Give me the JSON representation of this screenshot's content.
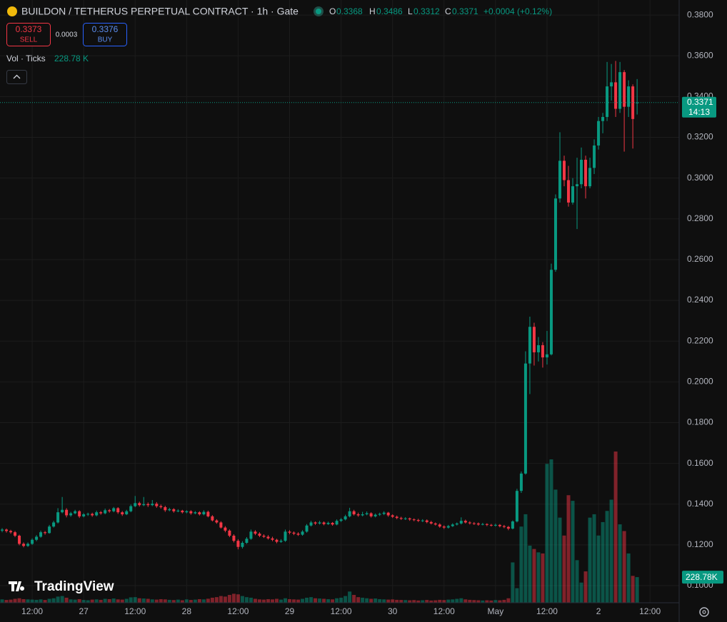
{
  "chart_data": {
    "type": "candlestick",
    "title": "BUILDON / TETHERUS PERPETUAL CONTRACT · 1h · Gate",
    "legend": {
      "o": "O",
      "open": 0.3368,
      "h": "H",
      "high": 0.3486,
      "l": "L",
      "low": 0.3312,
      "c": "C",
      "close": 0.3371,
      "change": "+0.0004 (+0.12%)"
    },
    "sell": {
      "price": 0.3373,
      "label": "SELL"
    },
    "spread": 0.0003,
    "buy": {
      "price": 0.3376,
      "label": "BUY"
    },
    "volume_legend": {
      "label": "Vol · Ticks",
      "value": "228.78 K"
    },
    "volume_tag": "228.78K",
    "last_price": 0.3371,
    "countdown": "14:13",
    "brand": "TradingView",
    "up_color": "#089981",
    "down_color": "#f23645",
    "grid": true,
    "ylim": [
      0.0916,
      0.3874
    ],
    "yticks": [
      {
        "value": 0.1,
        "label": "0.1000"
      },
      {
        "value": 0.12,
        "label": "0.1200"
      },
      {
        "value": 0.14,
        "label": "0.1400"
      },
      {
        "value": 0.16,
        "label": "0.1600"
      },
      {
        "value": 0.18,
        "label": "0.1800"
      },
      {
        "value": 0.2,
        "label": "0.2000"
      },
      {
        "value": 0.22,
        "label": "0.2200"
      },
      {
        "value": 0.24,
        "label": "0.2400"
      },
      {
        "value": 0.26,
        "label": "0.2600"
      },
      {
        "value": 0.28,
        "label": "0.2800"
      },
      {
        "value": 0.3,
        "label": "0.3000"
      },
      {
        "value": 0.32,
        "label": "0.3200"
      },
      {
        "value": 0.34,
        "label": "0.3400"
      },
      {
        "value": 0.36,
        "label": "0.3600"
      },
      {
        "value": 0.38,
        "label": "0.3800"
      }
    ],
    "xlim": [
      -0.5,
      157.8
    ],
    "xticks": [
      {
        "value": 7,
        "label": "12:00"
      },
      {
        "value": 19,
        "label": "27"
      },
      {
        "value": 31,
        "label": "12:00"
      },
      {
        "value": 43,
        "label": "28"
      },
      {
        "value": 55,
        "label": "12:00"
      },
      {
        "value": 67,
        "label": "29"
      },
      {
        "value": 79,
        "label": "12:00"
      },
      {
        "value": 91,
        "label": "30"
      },
      {
        "value": 103,
        "label": "12:00"
      },
      {
        "value": 115,
        "label": "May"
      },
      {
        "value": 127,
        "label": "12:00"
      },
      {
        "value": 139,
        "label": "2"
      },
      {
        "value": 151,
        "label": "12:00"
      }
    ],
    "ohlc": [
      [
        0.127,
        0.1282,
        0.1262,
        0.1275
      ],
      [
        0.1275,
        0.128,
        0.126,
        0.1268
      ],
      [
        0.1268,
        0.1274,
        0.1255,
        0.1262
      ],
      [
        0.1262,
        0.1268,
        0.1238,
        0.1245
      ],
      [
        0.1245,
        0.125,
        0.1198,
        0.1205
      ],
      [
        0.1205,
        0.1212,
        0.1188,
        0.1195
      ],
      [
        0.1195,
        0.1212,
        0.119,
        0.1205
      ],
      [
        0.1205,
        0.1232,
        0.12,
        0.1225
      ],
      [
        0.1225,
        0.1248,
        0.1218,
        0.124
      ],
      [
        0.124,
        0.127,
        0.1235,
        0.1262
      ],
      [
        0.1262,
        0.1268,
        0.125,
        0.1258
      ],
      [
        0.1258,
        0.1298,
        0.1255,
        0.129
      ],
      [
        0.129,
        0.1318,
        0.1285,
        0.131
      ],
      [
        0.131,
        0.138,
        0.1305,
        0.136
      ],
      [
        0.136,
        0.1435,
        0.1355,
        0.1372
      ],
      [
        0.1372,
        0.138,
        0.1335,
        0.1345
      ],
      [
        0.1345,
        0.1362,
        0.1338,
        0.1355
      ],
      [
        0.1355,
        0.1372,
        0.135,
        0.1365
      ],
      [
        0.1365,
        0.137,
        0.1332,
        0.134
      ],
      [
        0.134,
        0.1356,
        0.1335,
        0.135
      ],
      [
        0.135,
        0.1358,
        0.1342,
        0.1352
      ],
      [
        0.1352,
        0.1358,
        0.1338,
        0.1345
      ],
      [
        0.1345,
        0.1368,
        0.134,
        0.136
      ],
      [
        0.136,
        0.1366,
        0.1348,
        0.1355
      ],
      [
        0.1355,
        0.1378,
        0.135,
        0.137
      ],
      [
        0.137,
        0.1376,
        0.1358,
        0.1365
      ],
      [
        0.1365,
        0.1386,
        0.136,
        0.138
      ],
      [
        0.138,
        0.1385,
        0.1352,
        0.136
      ],
      [
        0.136,
        0.1366,
        0.1342,
        0.135
      ],
      [
        0.135,
        0.1372,
        0.1346,
        0.1365
      ],
      [
        0.1365,
        0.1398,
        0.136,
        0.139
      ],
      [
        0.139,
        0.144,
        0.1385,
        0.1405
      ],
      [
        0.1405,
        0.1412,
        0.1388,
        0.1395
      ],
      [
        0.1395,
        0.1435,
        0.139,
        0.14
      ],
      [
        0.14,
        0.1408,
        0.1386,
        0.1395
      ],
      [
        0.1395,
        0.142,
        0.139,
        0.1402
      ],
      [
        0.1402,
        0.141,
        0.1382,
        0.139
      ],
      [
        0.139,
        0.1398,
        0.1378,
        0.1385
      ],
      [
        0.1385,
        0.1392,
        0.1362,
        0.137
      ],
      [
        0.137,
        0.1382,
        0.1365,
        0.1375
      ],
      [
        0.1375,
        0.138,
        0.1358,
        0.1365
      ],
      [
        0.1365,
        0.1375,
        0.136,
        0.1368
      ],
      [
        0.1368,
        0.1372,
        0.1354,
        0.136
      ],
      [
        0.136,
        0.137,
        0.1355,
        0.1365
      ],
      [
        0.1365,
        0.137,
        0.1348,
        0.1355
      ],
      [
        0.1355,
        0.1366,
        0.135,
        0.136
      ],
      [
        0.136,
        0.1365,
        0.1344,
        0.135
      ],
      [
        0.135,
        0.137,
        0.1345,
        0.1362
      ],
      [
        0.1362,
        0.1368,
        0.1335,
        0.134
      ],
      [
        0.134,
        0.1346,
        0.1315,
        0.132
      ],
      [
        0.132,
        0.1326,
        0.1304,
        0.131
      ],
      [
        0.131,
        0.1316,
        0.128,
        0.1285
      ],
      [
        0.1285,
        0.1292,
        0.1262,
        0.127
      ],
      [
        0.127,
        0.1276,
        0.1238,
        0.1245
      ],
      [
        0.1245,
        0.1252,
        0.1212,
        0.122
      ],
      [
        0.122,
        0.1228,
        0.1178,
        0.119
      ],
      [
        0.119,
        0.1218,
        0.1182,
        0.121
      ],
      [
        0.121,
        0.1238,
        0.1205,
        0.123
      ],
      [
        0.123,
        0.1275,
        0.1225,
        0.1265
      ],
      [
        0.1265,
        0.1272,
        0.1248,
        0.1255
      ],
      [
        0.1255,
        0.1262,
        0.1238,
        0.1245
      ],
      [
        0.1245,
        0.1252,
        0.1234,
        0.124
      ],
      [
        0.124,
        0.1248,
        0.1226,
        0.1232
      ],
      [
        0.1232,
        0.124,
        0.1218,
        0.1225
      ],
      [
        0.1225,
        0.123,
        0.1208,
        0.1215
      ],
      [
        0.1215,
        0.1228,
        0.121,
        0.122
      ],
      [
        0.122,
        0.1275,
        0.1215,
        0.1265
      ],
      [
        0.1265,
        0.1272,
        0.1252,
        0.126
      ],
      [
        0.126,
        0.1266,
        0.1248,
        0.1255
      ],
      [
        0.1255,
        0.1262,
        0.1244,
        0.125
      ],
      [
        0.125,
        0.1272,
        0.1245,
        0.1265
      ],
      [
        0.1265,
        0.1302,
        0.126,
        0.1295
      ],
      [
        0.1295,
        0.1318,
        0.129,
        0.131
      ],
      [
        0.131,
        0.1315,
        0.1298,
        0.1305
      ],
      [
        0.1305,
        0.1318,
        0.13,
        0.131
      ],
      [
        0.131,
        0.1315,
        0.1296,
        0.1302
      ],
      [
        0.1302,
        0.1314,
        0.1298,
        0.1308
      ],
      [
        0.1308,
        0.1312,
        0.1294,
        0.13
      ],
      [
        0.13,
        0.1325,
        0.1296,
        0.1318
      ],
      [
        0.1318,
        0.1332,
        0.1312,
        0.1325
      ],
      [
        0.1325,
        0.1348,
        0.132,
        0.134
      ],
      [
        0.134,
        0.1382,
        0.1335,
        0.1365
      ],
      [
        0.1365,
        0.1372,
        0.1344,
        0.135
      ],
      [
        0.135,
        0.1358,
        0.1338,
        0.1345
      ],
      [
        0.1345,
        0.1362,
        0.134,
        0.135
      ],
      [
        0.135,
        0.1364,
        0.1345,
        0.1355
      ],
      [
        0.1355,
        0.136,
        0.1334,
        0.134
      ],
      [
        0.134,
        0.1354,
        0.1335,
        0.1348
      ],
      [
        0.1348,
        0.1358,
        0.1342,
        0.1352
      ],
      [
        0.1352,
        0.1365,
        0.1346,
        0.1358
      ],
      [
        0.1358,
        0.1362,
        0.1338,
        0.1345
      ],
      [
        0.1345,
        0.135,
        0.1332,
        0.1338
      ],
      [
        0.1338,
        0.1344,
        0.1326,
        0.1332
      ],
      [
        0.1332,
        0.1338,
        0.1322,
        0.1328
      ],
      [
        0.1328,
        0.1336,
        0.1322,
        0.133
      ],
      [
        0.133,
        0.1334,
        0.1318,
        0.1325
      ],
      [
        0.1325,
        0.133,
        0.1316,
        0.1322
      ],
      [
        0.1322,
        0.1328,
        0.1312,
        0.1318
      ],
      [
        0.1318,
        0.1326,
        0.1312,
        0.132
      ],
      [
        0.132,
        0.1325,
        0.1306,
        0.1312
      ],
      [
        0.1312,
        0.1318,
        0.13,
        0.1305
      ],
      [
        0.1305,
        0.131,
        0.1295,
        0.13
      ],
      [
        0.13,
        0.1306,
        0.1284,
        0.129
      ],
      [
        0.129,
        0.1296,
        0.1278,
        0.1285
      ],
      [
        0.1285,
        0.1298,
        0.128,
        0.1292
      ],
      [
        0.1292,
        0.1306,
        0.1288,
        0.13
      ],
      [
        0.13,
        0.131,
        0.1295,
        0.1305
      ],
      [
        0.1305,
        0.1335,
        0.13,
        0.1318
      ],
      [
        0.1318,
        0.1324,
        0.1305,
        0.131
      ],
      [
        0.131,
        0.1316,
        0.13,
        0.1306
      ],
      [
        0.1306,
        0.1312,
        0.1298,
        0.1305
      ],
      [
        0.1305,
        0.131,
        0.1294,
        0.13
      ],
      [
        0.13,
        0.1308,
        0.1296,
        0.1302
      ],
      [
        0.1302,
        0.1306,
        0.1292,
        0.1298
      ],
      [
        0.1298,
        0.1303,
        0.129,
        0.1295
      ],
      [
        0.1295,
        0.1304,
        0.129,
        0.1298
      ],
      [
        0.1298,
        0.1302,
        0.1286,
        0.1292
      ],
      [
        0.1292,
        0.1298,
        0.1282,
        0.1288
      ],
      [
        0.1288,
        0.1293,
        0.1272,
        0.128
      ],
      [
        0.128,
        0.132,
        0.1276,
        0.1315
      ],
      [
        0.1315,
        0.1475,
        0.131,
        0.1465
      ],
      [
        0.1465,
        0.156,
        0.1455,
        0.155
      ],
      [
        0.155,
        0.215,
        0.1545,
        0.209
      ],
      [
        0.209,
        0.232,
        0.194,
        0.227
      ],
      [
        0.227,
        0.229,
        0.208,
        0.2145
      ],
      [
        0.2145,
        0.222,
        0.21,
        0.218
      ],
      [
        0.218,
        0.2195,
        0.207,
        0.212
      ],
      [
        0.212,
        0.225,
        0.2085,
        0.2135
      ],
      [
        0.2135,
        0.258,
        0.213,
        0.255
      ],
      [
        0.255,
        0.292,
        0.254,
        0.29
      ],
      [
        0.29,
        0.3225,
        0.288,
        0.3085
      ],
      [
        0.3085,
        0.311,
        0.296,
        0.299
      ],
      [
        0.299,
        0.306,
        0.286,
        0.288
      ],
      [
        0.288,
        0.3,
        0.287,
        0.296
      ],
      [
        0.296,
        0.31,
        0.275,
        0.297
      ],
      [
        0.297,
        0.315,
        0.295,
        0.309
      ],
      [
        0.309,
        0.311,
        0.29,
        0.296
      ],
      [
        0.296,
        0.31,
        0.295,
        0.305
      ],
      [
        0.305,
        0.319,
        0.302,
        0.316
      ],
      [
        0.316,
        0.33,
        0.314,
        0.328
      ],
      [
        0.328,
        0.332,
        0.322,
        0.33
      ],
      [
        0.33,
        0.357,
        0.328,
        0.345
      ],
      [
        0.345,
        0.356,
        0.338,
        0.347
      ],
      [
        0.347,
        0.3575,
        0.33,
        0.334
      ],
      [
        0.334,
        0.357,
        0.332,
        0.352
      ],
      [
        0.352,
        0.353,
        0.313,
        0.335
      ],
      [
        0.335,
        0.348,
        0.33,
        0.345
      ],
      [
        0.345,
        0.346,
        0.3145,
        0.329
      ],
      [
        0.3368,
        0.3486,
        0.3312,
        0.3371
      ]
    ],
    "volume": [
      30,
      25,
      28,
      35,
      40,
      32,
      30,
      28,
      26,
      30,
      25,
      35,
      40,
      55,
      60,
      45,
      30,
      28,
      32,
      25,
      22,
      28,
      30,
      26,
      35,
      32,
      38,
      30,
      28,
      35,
      48,
      50,
      40,
      38,
      35,
      30,
      28,
      32,
      30,
      26,
      24,
      28,
      22,
      30,
      25,
      28,
      32,
      30,
      36,
      45,
      50,
      60,
      55,
      70,
      80,
      75,
      60,
      50,
      45,
      35,
      30,
      28,
      32,
      30,
      35,
      28,
      40,
      32,
      30,
      28,
      35,
      45,
      50,
      40,
      38,
      35,
      32,
      30,
      40,
      45,
      60,
      100,
      70,
      50,
      45,
      40,
      35,
      38,
      32,
      30,
      28,
      30,
      26,
      25,
      24,
      22,
      24,
      20,
      22,
      25,
      20,
      22,
      26,
      24,
      28,
      30,
      35,
      40,
      30,
      26,
      24,
      22,
      20,
      22,
      20,
      24,
      22,
      26,
      40,
      360,
      130,
      680,
      790,
      510,
      480,
      450,
      440,
      1240,
      1280,
      1010,
      760,
      600,
      960,
      910,
      380,
      180,
      280,
      760,
      790,
      600,
      720,
      820,
      920,
      1350,
      700,
      640,
      440,
      240,
      228.78
    ]
  }
}
